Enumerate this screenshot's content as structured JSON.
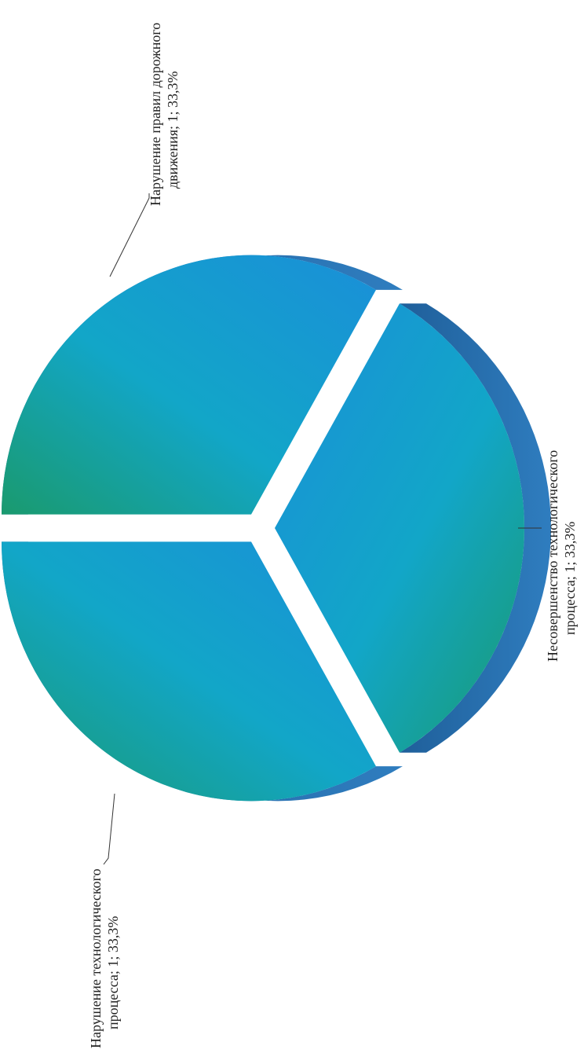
{
  "chart_data": {
    "type": "pie",
    "title": "",
    "categories": [
      "Нарушение правил дорожного движения",
      "Несовершенство технологического процесса",
      "Нарушение технологического процесса"
    ],
    "values": [
      1,
      1,
      1
    ],
    "percent_labels": [
      "33,3%",
      "33,3%",
      "33,3%"
    ],
    "data_labels": [
      {
        "line1": "Нарушение правил дорожного",
        "line2": "движения; 1; 33,3%"
      },
      {
        "line1": "Несовершенство технологического",
        "line2": "процесса; 1; 33,3%"
      },
      {
        "line1": "Нарушение технологического",
        "line2": "процесса; 1; 33,3%"
      }
    ],
    "style": "3d-exploded",
    "legend": "none",
    "colors": {
      "face_start": "#1a8fd8",
      "face_mid": "#12a6c8",
      "face_end": "#1a9a6e",
      "side": "#2a6fae"
    }
  }
}
